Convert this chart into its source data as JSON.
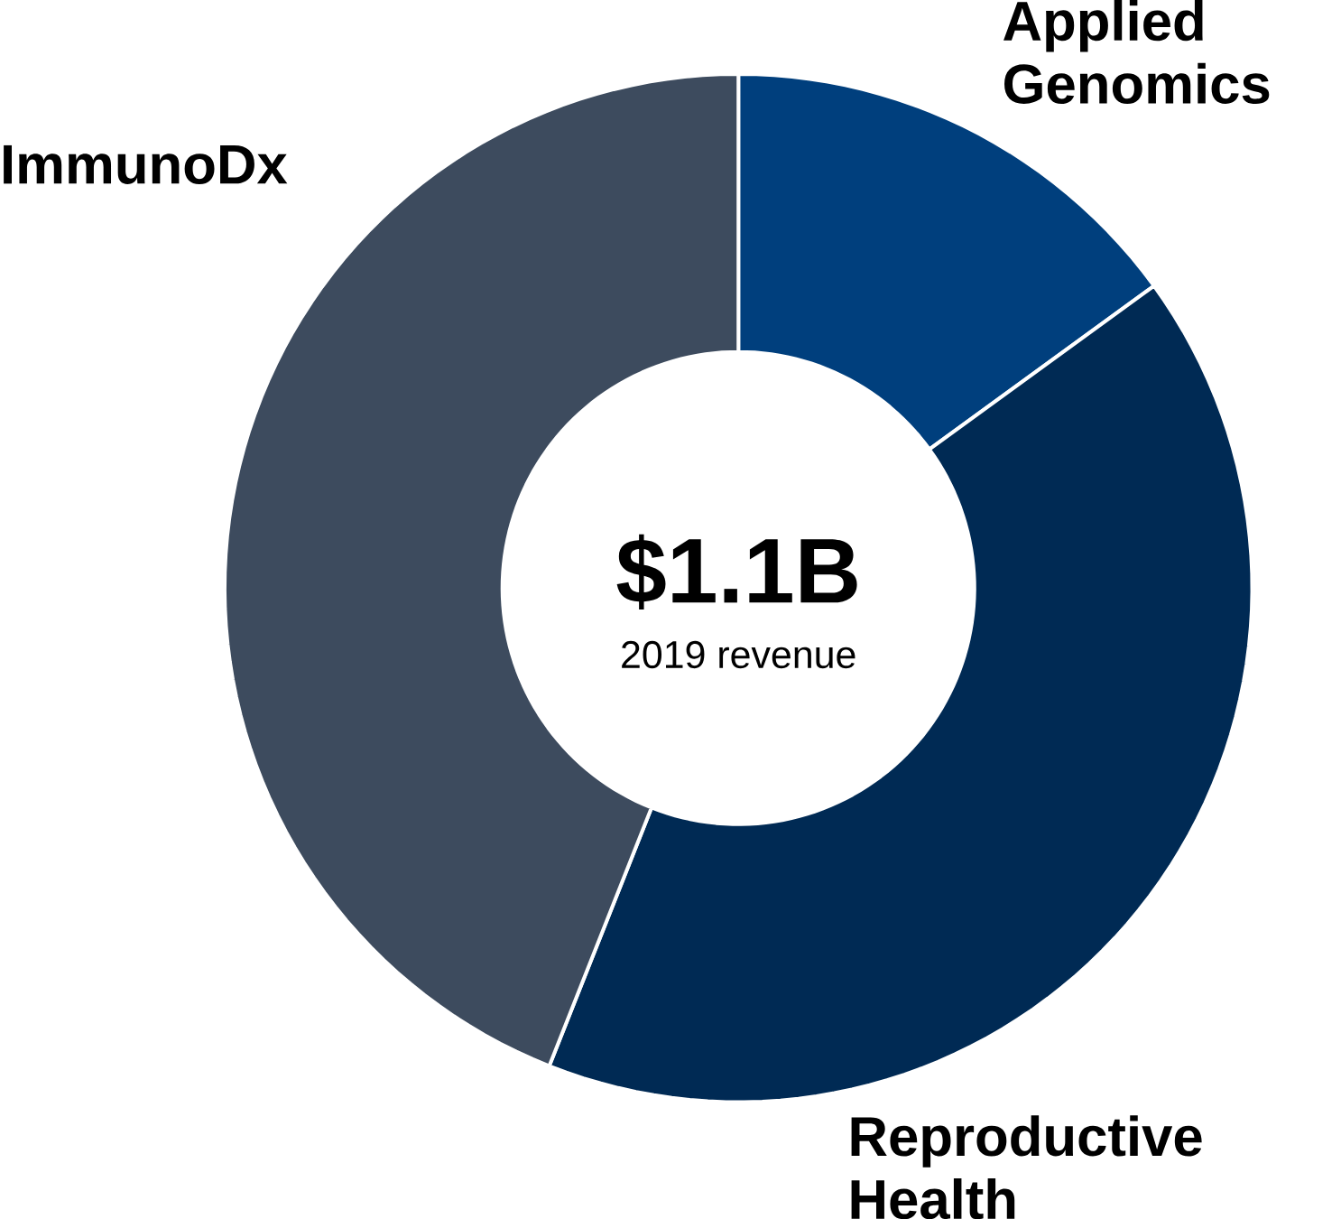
{
  "chart_data": {
    "type": "donut",
    "title": "$1.1B",
    "subtitle": "2019 revenue",
    "categories": [
      "Applied Genomics",
      "Reproductive Health",
      "ImmunoDx"
    ],
    "values": [
      15,
      41,
      44
    ],
    "colors": [
      "#003f7d",
      "#002a54",
      "#3d4b5e"
    ]
  }
}
